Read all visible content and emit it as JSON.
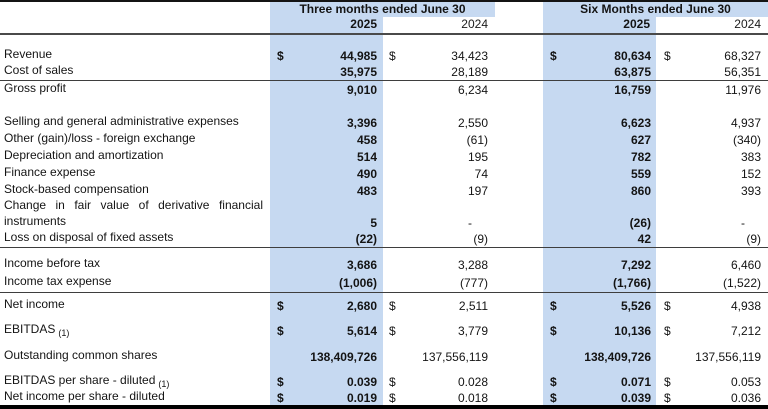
{
  "colors": {
    "highlight_2025_column": "#c6d9f1",
    "text": "#141414",
    "rule_line": "#3e3e3e"
  },
  "table": {
    "groups": [
      {
        "label": "Three months ended June 30"
      },
      {
        "label": "Six Months ended June 30"
      }
    ],
    "year_headers": [
      "2025",
      "2024",
      "2025",
      "2024"
    ],
    "rows": [
      {
        "spacer": true,
        "h": 12
      },
      {
        "label": "Revenue",
        "currency": "$",
        "values": [
          "44,985",
          "34,423",
          "80,634",
          "68,327"
        ]
      },
      {
        "label": "Cost of sales",
        "currency": "",
        "values": [
          "35,975",
          "28,189",
          "63,875",
          "56,351"
        ],
        "rule": true
      },
      {
        "label": "Gross profit",
        "currency": "",
        "values": [
          "9,010",
          "6,234",
          "16,759",
          "11,976"
        ]
      },
      {
        "spacer": true,
        "h": 16
      },
      {
        "label": "Selling and general administrative expenses",
        "currency": "",
        "values": [
          "3,396",
          "2,550",
          "6,623",
          "4,937"
        ]
      },
      {
        "label": "Other (gain)/loss - foreign exchange",
        "currency": "",
        "values": [
          "458",
          "(61)",
          "627",
          "(340)"
        ]
      },
      {
        "label": "Depreciation and amortization",
        "currency": "",
        "values": [
          "514",
          "195",
          "782",
          "383"
        ]
      },
      {
        "label": "Finance expense",
        "currency": "",
        "values": [
          "490",
          "74",
          "559",
          "152"
        ]
      },
      {
        "label": "Stock-based compensation",
        "currency": "",
        "values": [
          "483",
          "197",
          "860",
          "393"
        ]
      },
      {
        "label": "Change in fair value of derivative financial",
        "currency": "",
        "values": [
          "",
          "",
          "",
          ""
        ],
        "justify": true,
        "h": 16
      },
      {
        "label": "instruments",
        "currency": "",
        "values": [
          "5",
          "-",
          "(26)",
          "-"
        ],
        "h": 16
      },
      {
        "label": "Loss on disposal of fixed assets",
        "currency": "",
        "values": [
          "(22)",
          "(9)",
          "42",
          "(9)"
        ],
        "rule": true
      },
      {
        "spacer": true,
        "h": 8
      },
      {
        "label": "Income before tax",
        "currency": "",
        "values": [
          "3,686",
          "3,288",
          "7,292",
          "6,460"
        ]
      },
      {
        "label": "Income tax expense",
        "currency": "",
        "values": [
          "(1,006)",
          "(777)",
          "(1,766)",
          "(1,522)"
        ],
        "rule": true,
        "h": 20
      },
      {
        "spacer": true,
        "h": 4
      },
      {
        "label": "Net income",
        "currency": "$",
        "values": [
          "2,680",
          "2,511",
          "5,526",
          "4,938"
        ]
      },
      {
        "spacer": true,
        "h": 8
      },
      {
        "label": "EBITDAS",
        "sub": "(1)",
        "currency": "$",
        "values": [
          "5,614",
          "3,779",
          "10,136",
          "7,212"
        ]
      },
      {
        "spacer": true,
        "h": 9
      },
      {
        "label": "Outstanding common shares",
        "currency": "",
        "values": [
          "138,409,726",
          "137,556,119",
          "138,409,726",
          "137,556,119"
        ]
      },
      {
        "spacer": true,
        "h": 8
      },
      {
        "label": "EBITDAS per share - diluted",
        "sub": "(1)",
        "currency": "$",
        "values": [
          "0.039",
          "0.028",
          "0.071",
          "0.053"
        ]
      },
      {
        "label": "Net income per share - diluted",
        "currency": "$",
        "values": [
          "0.019",
          "0.018",
          "0.039",
          "0.036"
        ],
        "h": 15
      }
    ]
  }
}
